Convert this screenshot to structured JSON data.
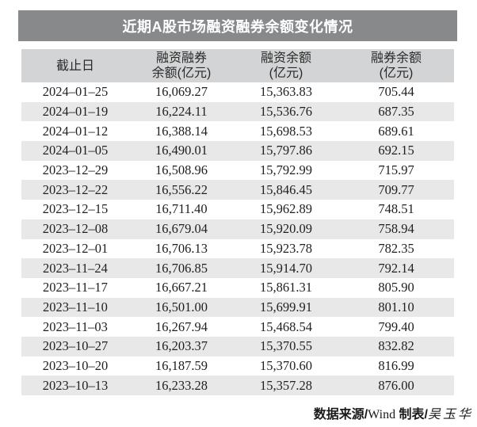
{
  "title": "近期A股市场融资融券余额变化情况",
  "table": {
    "columns": [
      {
        "label_lines": [
          "截止日"
        ]
      },
      {
        "label_lines": [
          "融资融券",
          "余额(亿元)"
        ]
      },
      {
        "label_lines": [
          "融资余额",
          "(亿元)"
        ]
      },
      {
        "label_lines": [
          "融券余额",
          "(亿元)"
        ]
      }
    ],
    "rows": [
      [
        "2024–01–25",
        "16,069.27",
        "15,363.83",
        "705.44"
      ],
      [
        "2024–01–19",
        "16,224.11",
        "15,536.76",
        "687.35"
      ],
      [
        "2024–01–12",
        "16,388.14",
        "15,698.53",
        "689.61"
      ],
      [
        "2024–01–05",
        "16,490.01",
        "15,797.86",
        "692.15"
      ],
      [
        "2023–12–29",
        "16,508.96",
        "15,792.99",
        "715.97"
      ],
      [
        "2023–12–22",
        "16,556.22",
        "15,846.45",
        "709.77"
      ],
      [
        "2023–12–15",
        "16,711.40",
        "15,962.89",
        "748.51"
      ],
      [
        "2023–12–08",
        "16,679.04",
        "15,920.09",
        "758.94"
      ],
      [
        "2023–12–01",
        "16,706.13",
        "15,923.78",
        "782.35"
      ],
      [
        "2023–11–24",
        "16,706.85",
        "15,914.70",
        "792.14"
      ],
      [
        "2023–11–17",
        "16,667.21",
        "15,861.31",
        "805.90"
      ],
      [
        "2023–11–10",
        "16,501.00",
        "15,699.91",
        "801.10"
      ],
      [
        "2023–11–03",
        "16,267.94",
        "15,468.54",
        "799.40"
      ],
      [
        "2023–10–27",
        "16,203.37",
        "15,370.55",
        "832.82"
      ],
      [
        "2023–10–20",
        "16,187.59",
        "15,370.60",
        "816.99"
      ],
      [
        "2023–10–13",
        "16,233.28",
        "15,357.28",
        "876.00"
      ]
    ]
  },
  "footer": {
    "source_label": "数据来源/",
    "source_value": "Wind",
    "author_label": " 制表/",
    "author_value": "吴玉华"
  },
  "colors": {
    "title_bar_bg": "#88898b",
    "title_text": "#ffffff",
    "header_bg": "#d3d4d5",
    "row_alt_bg": "#e8e8e9",
    "body_text": "#1f1f1f"
  },
  "chart_data": {
    "type": "table",
    "title": "近期A股市场融资融券余额变化情况",
    "columns": [
      "截止日",
      "融资融券余额(亿元)",
      "融资余额(亿元)",
      "融券余额(亿元)"
    ],
    "rows": [
      [
        "2024-01-25",
        16069.27,
        15363.83,
        705.44
      ],
      [
        "2024-01-19",
        16224.11,
        15536.76,
        687.35
      ],
      [
        "2024-01-12",
        16388.14,
        15698.53,
        689.61
      ],
      [
        "2024-01-05",
        16490.01,
        15797.86,
        692.15
      ],
      [
        "2023-12-29",
        16508.96,
        15792.99,
        715.97
      ],
      [
        "2023-12-22",
        16556.22,
        15846.45,
        709.77
      ],
      [
        "2023-12-15",
        16711.4,
        15962.89,
        748.51
      ],
      [
        "2023-12-08",
        16679.04,
        15920.09,
        758.94
      ],
      [
        "2023-12-01",
        16706.13,
        15923.78,
        782.35
      ],
      [
        "2023-11-24",
        16706.85,
        15914.7,
        792.14
      ],
      [
        "2023-11-17",
        16667.21,
        15861.31,
        805.9
      ],
      [
        "2023-11-10",
        16501.0,
        15699.91,
        801.1
      ],
      [
        "2023-11-03",
        16267.94,
        15468.54,
        799.4
      ],
      [
        "2023-10-27",
        16203.37,
        15370.55,
        832.82
      ],
      [
        "2023-10-20",
        16187.59,
        15370.6,
        816.99
      ],
      [
        "2023-10-13",
        16233.28,
        15357.28,
        876.0
      ]
    ],
    "source": "数据来源/Wind 制表/吴玉华",
    "layout_hints": {
      "striped_rows": "even",
      "all_cells_centered": true
    }
  }
}
